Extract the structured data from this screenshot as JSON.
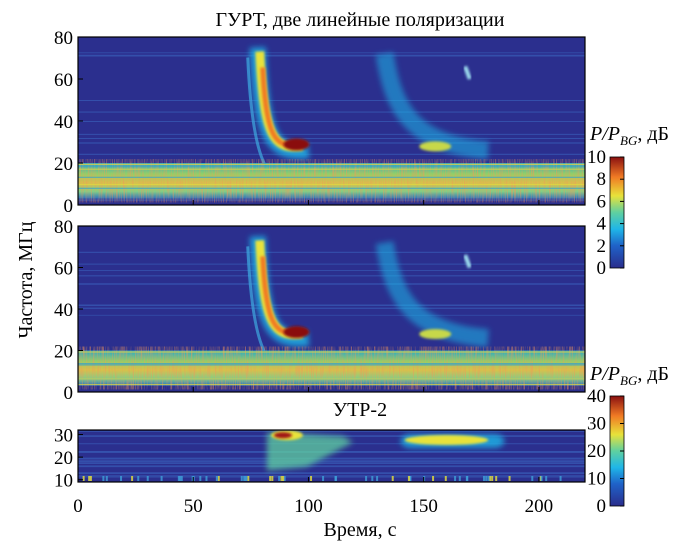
{
  "chart_data": {
    "type": "heatmap",
    "xlabel": "Время, с",
    "ylabel": "Частота, МГц",
    "xlim": [
      0,
      220
    ],
    "xticks": [
      "0",
      "50",
      "100",
      "150",
      "200"
    ],
    "panels": [
      {
        "title": "ГУРТ, две линейные поляризации",
        "ylim": [
          0,
          80
        ],
        "yticks": [
          "0",
          "20",
          "40",
          "60",
          "80"
        ],
        "colorbar_label": "P/P",
        "colorbar_sub": "BG",
        "colorbar_unit": ", дБ",
        "colorbar_range": [
          0,
          10
        ],
        "colorbar_ticks": [
          "0",
          "2",
          "4",
          "6",
          "8",
          "10"
        ],
        "features": [
          {
            "name": "type-III burst",
            "t_start": 78,
            "t_end": 100,
            "f_high": 75,
            "f_low": 26,
            "peak_db": 10
          },
          {
            "name": "echo burst",
            "t_start": 133,
            "t_end": 178,
            "f_high": 72,
            "f_low": 26,
            "peak_db": 5
          },
          {
            "name": "interference band",
            "f_low": 3,
            "f_high": 20,
            "level_db": 7
          }
        ]
      },
      {
        "title": "",
        "ylim": [
          0,
          80
        ],
        "yticks": [
          "0",
          "20",
          "40",
          "60",
          "80"
        ],
        "features": [
          {
            "name": "type-III burst",
            "t_start": 78,
            "t_end": 100,
            "f_high": 75,
            "f_low": 26,
            "peak_db": 10
          },
          {
            "name": "echo burst",
            "t_start": 133,
            "t_end": 178,
            "f_high": 72,
            "f_low": 26,
            "peak_db": 5
          },
          {
            "name": "interference band",
            "f_low": 3,
            "f_high": 20,
            "level_db": 7
          }
        ]
      },
      {
        "title": "УТР-2",
        "ylim": [
          9,
          32
        ],
        "yticks": [
          "10",
          "20",
          "30"
        ],
        "colorbar_label": "P/P",
        "colorbar_sub": "BG",
        "colorbar_unit": ", дБ",
        "colorbar_range": [
          0,
          40
        ],
        "colorbar_ticks": [
          "0",
          "10",
          "20",
          "30",
          "40"
        ],
        "features": [
          {
            "name": "type-III burst",
            "t_start": 82,
            "t_end": 115,
            "f_high": 31,
            "f_low": 14,
            "peak_db": 38
          },
          {
            "name": "echo burst",
            "t_start": 140,
            "t_end": 185,
            "f_high": 31,
            "f_low": 25,
            "peak_db": 25
          }
        ]
      }
    ]
  }
}
